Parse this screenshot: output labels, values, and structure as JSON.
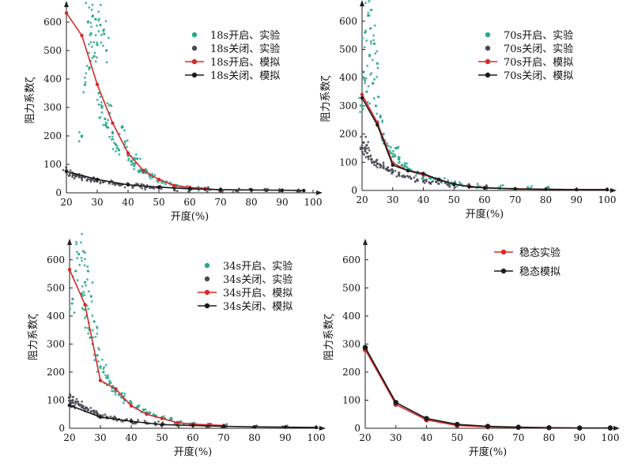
{
  "colors": {
    "exp_open": "#2aa88f",
    "exp_close": "#4a4a55",
    "sim_open": "#d62a2a",
    "sim_close": "#1a1a1a",
    "axis": "#222222"
  },
  "chart_data": [
    {
      "id": "p18",
      "type": "scatter",
      "xlabel": "开度(%)",
      "ylabel": "阻力系数ζ",
      "xlim": [
        20,
        100
      ],
      "ylim": [
        0,
        650
      ],
      "xticks": [
        20,
        30,
        40,
        50,
        60,
        70,
        80,
        90,
        100
      ],
      "yticks": [
        0,
        100,
        200,
        300,
        400,
        500,
        600
      ],
      "legend_position": "top-right",
      "series": [
        {
          "name": "18s开启、实验",
          "kind": "scatter",
          "role": "exp_open",
          "x": [
            25,
            26,
            27,
            27.5,
            28,
            28.5,
            29,
            29.5,
            30,
            30.5,
            31,
            31.5,
            32,
            32.5,
            33,
            33.5,
            34,
            35,
            36,
            37,
            38,
            39,
            40,
            41,
            42,
            43,
            44,
            45,
            46,
            47,
            48,
            50,
            52,
            54,
            56,
            58,
            60,
            63,
            66,
            70
          ],
          "y": [
            200,
            380,
            600,
            440,
            560,
            620,
            480,
            610,
            520,
            350,
            590,
            300,
            570,
            260,
            500,
            230,
            280,
            210,
            170,
            150,
            230,
            180,
            130,
            110,
            95,
            120,
            80,
            70,
            75,
            60,
            55,
            45,
            38,
            30,
            25,
            20,
            18,
            14,
            12,
            10
          ]
        },
        {
          "name": "18s关闭、实验",
          "kind": "scatter",
          "role": "exp_close",
          "x": [
            20,
            21,
            22,
            23,
            24,
            25,
            26,
            27,
            28,
            29,
            30,
            32,
            34,
            36,
            38,
            40,
            42,
            44,
            46,
            48,
            50,
            55,
            60,
            65,
            70,
            75,
            80,
            85,
            90,
            95
          ],
          "y": [
            80,
            62,
            70,
            58,
            60,
            52,
            55,
            48,
            45,
            50,
            40,
            38,
            36,
            32,
            30,
            27,
            25,
            22,
            20,
            18,
            16,
            13,
            11,
            10,
            9,
            8,
            8,
            7,
            7,
            6
          ]
        },
        {
          "name": "18s开启、模拟",
          "kind": "line",
          "role": "sim_open",
          "x": [
            20,
            25,
            30,
            35,
            40,
            45,
            50,
            55,
            60,
            65,
            70
          ],
          "y": [
            632,
            553,
            381,
            245,
            139,
            78,
            47,
            25,
            19,
            15,
            10
          ]
        },
        {
          "name": "18s关闭、模拟",
          "kind": "line",
          "role": "sim_close",
          "x": [
            20,
            30,
            40,
            50,
            60,
            70,
            80,
            90,
            97
          ],
          "y": [
            75,
            47,
            28,
            20,
            14,
            11,
            10,
            9,
            8
          ]
        }
      ]
    },
    {
      "id": "p70",
      "type": "scatter",
      "xlabel": "开度(%)",
      "ylabel": "阻力系数ζ",
      "xlim": [
        20,
        100
      ],
      "ylim": [
        0,
        650
      ],
      "xticks": [
        20,
        30,
        40,
        50,
        60,
        70,
        80,
        90,
        100
      ],
      "yticks": [
        0,
        100,
        200,
        300,
        400,
        500,
        600
      ],
      "legend_position": "top-right",
      "series": [
        {
          "name": "70s开启、实验",
          "kind": "scatter",
          "role": "exp_open",
          "x": [
            20,
            20.5,
            21,
            21.5,
            22,
            22.5,
            23,
            23.5,
            24,
            24.5,
            25,
            26,
            27,
            28,
            29,
            30,
            31,
            32,
            33,
            34,
            35,
            36,
            38,
            40,
            42,
            44,
            46,
            48,
            50,
            52,
            55,
            58,
            60,
            65,
            70,
            75,
            80
          ],
          "y": [
            300,
            420,
            560,
            350,
            620,
            480,
            640,
            380,
            520,
            300,
            450,
            260,
            200,
            160,
            140,
            120,
            150,
            110,
            90,
            85,
            75,
            70,
            60,
            50,
            45,
            40,
            35,
            30,
            25,
            22,
            18,
            15,
            12,
            10,
            8,
            7,
            6
          ]
        },
        {
          "name": "70s关闭、实验",
          "kind": "scatter",
          "role": "exp_close",
          "x": [
            20,
            20.5,
            21,
            21.5,
            22,
            23,
            24,
            25,
            26,
            27,
            28,
            29,
            30,
            32,
            34,
            36,
            38,
            40,
            42,
            45,
            48,
            50,
            55,
            60
          ],
          "y": [
            150,
            170,
            140,
            160,
            120,
            110,
            100,
            95,
            90,
            80,
            75,
            70,
            65,
            55,
            48,
            42,
            38,
            32,
            28,
            24,
            20,
            18,
            14,
            10
          ]
        },
        {
          "name": "70s开启、模拟",
          "kind": "line",
          "role": "sim_open",
          "x": [
            20,
            25,
            30,
            35,
            40,
            45,
            50,
            55,
            60,
            70,
            80,
            90,
            100
          ],
          "y": [
            340,
            240,
            98,
            70,
            55,
            40,
            22,
            15,
            10,
            6,
            4,
            3,
            3
          ]
        },
        {
          "name": "70s关闭、模拟",
          "kind": "line",
          "role": "sim_close",
          "x": [
            20,
            25,
            30,
            35,
            40,
            45,
            50,
            55,
            60,
            70,
            80,
            90,
            100
          ],
          "y": [
            328,
            232,
            90,
            70,
            60,
            38,
            22,
            13,
            9,
            5,
            4,
            3,
            3
          ]
        }
      ]
    },
    {
      "id": "p34",
      "type": "scatter",
      "xlabel": "开度(%)",
      "ylabel": "阻力系数ζ",
      "xlim": [
        20,
        100
      ],
      "ylim": [
        0,
        650
      ],
      "xticks": [
        20,
        30,
        40,
        50,
        60,
        70,
        80,
        90,
        100
      ],
      "yticks": [
        0,
        100,
        200,
        300,
        400,
        500,
        600
      ],
      "legend_position": "top-right",
      "series": [
        {
          "name": "34s开启、实验",
          "kind": "scatter",
          "role": "exp_open",
          "x": [
            21,
            22,
            23,
            24,
            24.5,
            25,
            25.5,
            26,
            26.5,
            27,
            27.5,
            28,
            29,
            30,
            31,
            32,
            33,
            34,
            35,
            36,
            37,
            38,
            40,
            42,
            44,
            46,
            48,
            50,
            53,
            56,
            60,
            65,
            70
          ],
          "y": [
            460,
            560,
            620,
            480,
            630,
            520,
            400,
            560,
            350,
            470,
            300,
            380,
            260,
            220,
            200,
            180,
            160,
            150,
            130,
            120,
            110,
            100,
            90,
            75,
            65,
            55,
            45,
            38,
            30,
            22,
            16,
            12,
            9
          ]
        },
        {
          "name": "34s关闭、实验",
          "kind": "scatter",
          "role": "exp_close",
          "x": [
            20,
            20.5,
            21,
            21.5,
            22,
            23,
            24,
            25,
            26,
            27,
            28,
            29,
            30,
            32,
            34,
            36,
            38,
            40,
            42,
            45,
            48,
            50,
            55,
            60,
            65,
            70,
            80,
            90
          ],
          "y": [
            110,
            90,
            100,
            80,
            95,
            85,
            75,
            70,
            65,
            60,
            55,
            50,
            45,
            40,
            36,
            32,
            28,
            25,
            22,
            19,
            16,
            14,
            11,
            9,
            8,
            7,
            6,
            5
          ]
        },
        {
          "name": "34s开启、模拟",
          "kind": "line",
          "role": "sim_open",
          "x": [
            20,
            25,
            30,
            35,
            40,
            45,
            50,
            55,
            60,
            65,
            70
          ],
          "y": [
            565,
            440,
            170,
            140,
            80,
            50,
            35,
            20,
            15,
            12,
            10
          ]
        },
        {
          "name": "34s关闭、模拟",
          "kind": "line",
          "role": "sim_close",
          "x": [
            20,
            30,
            40,
            50,
            60,
            70,
            80,
            90,
            100
          ],
          "y": [
            82,
            40,
            25,
            13,
            10,
            7,
            5,
            4,
            3
          ]
        }
      ]
    },
    {
      "id": "pss",
      "type": "line",
      "xlabel": "开度(%)",
      "ylabel": "阻力系数ζ",
      "xlim": [
        20,
        100
      ],
      "ylim": [
        0,
        650
      ],
      "xticks": [
        20,
        30,
        40,
        50,
        60,
        70,
        80,
        90,
        100
      ],
      "yticks": [
        0,
        100,
        200,
        300,
        400,
        500,
        600
      ],
      "legend_position": "top-right",
      "series": [
        {
          "name": "稳态实验",
          "kind": "line",
          "role": "sim_open",
          "x": [
            20,
            30,
            40,
            50,
            60,
            70,
            80,
            90,
            100
          ],
          "y": [
            280,
            85,
            30,
            10,
            5,
            3,
            2,
            1,
            1
          ]
        },
        {
          "name": "稳态模拟",
          "kind": "line",
          "role": "sim_close",
          "x": [
            20,
            30,
            40,
            50,
            60,
            70,
            80,
            90,
            100
          ],
          "y": [
            288,
            92,
            35,
            14,
            7,
            4,
            2,
            1,
            1
          ]
        }
      ]
    }
  ]
}
